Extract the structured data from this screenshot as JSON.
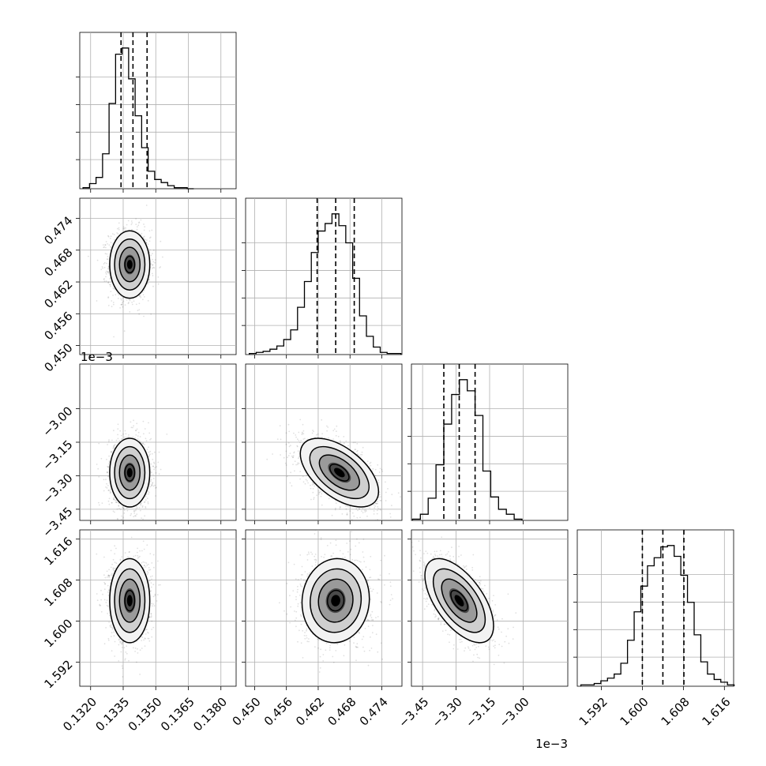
{
  "chart_data": {
    "type": "corner",
    "title": "",
    "grid": true,
    "quantiles_shown": 3,
    "params": [
      {
        "index": 0,
        "range": [
          0.1315,
          0.1387
        ],
        "ticks": [
          0.132,
          0.1335,
          0.135,
          0.1365,
          0.138
        ],
        "tick_labels": [
          "0.1320",
          "0.1335",
          "0.1350",
          "0.1365",
          "0.1380"
        ],
        "offset_label": "",
        "quantiles": [
          0.1334,
          0.13395,
          0.1346
        ],
        "histogram": {
          "bin_edges": [
            0.13165,
            0.13195,
            0.13225,
            0.13255,
            0.13285,
            0.13315,
            0.13345,
            0.13375,
            0.13405,
            0.13435,
            0.13465,
            0.13495,
            0.13525,
            0.13555,
            0.13585,
            0.13615,
            0.13645,
            0.13675
          ],
          "counts": [
            1,
            5,
            11,
            34,
            83,
            131,
            137,
            107,
            71,
            40,
            17,
            9,
            6,
            3,
            1,
            1,
            0
          ]
        }
      },
      {
        "index": 1,
        "range": [
          0.4483,
          0.4778
        ],
        "ticks": [
          0.45,
          0.456,
          0.462,
          0.468,
          0.474
        ],
        "tick_labels": [
          "0.450",
          "0.456",
          "0.462",
          "0.468",
          "0.474"
        ],
        "offset_label": "",
        "quantiles": [
          0.4618,
          0.4653,
          0.4688
        ],
        "histogram": {
          "bin_edges": [
            0.449,
            0.4503,
            0.4516,
            0.4529,
            0.4542,
            0.4555,
            0.4568,
            0.4581,
            0.4594,
            0.4607,
            0.462,
            0.4633,
            0.4646,
            0.4659,
            0.4672,
            0.4685,
            0.4698,
            0.4711,
            0.4724,
            0.4737,
            0.475,
            0.4763,
            0.4776
          ],
          "counts": [
            1,
            2,
            3,
            5,
            8,
            14,
            23,
            44,
            68,
            95,
            115,
            122,
            131,
            120,
            104,
            71,
            36,
            17,
            7,
            2,
            1,
            1
          ]
        }
      },
      {
        "index": 2,
        "range": [
          -3.5,
          -2.8
        ],
        "ticks": [
          -3.45,
          -3.3,
          -3.15,
          -3.0
        ],
        "tick_labels": [
          "−3.45",
          "−3.30",
          "−3.15",
          "−3.00"
        ],
        "offset_label": "1e−3",
        "quantiles": [
          -3.355,
          -3.286,
          -3.215
        ],
        "histogram": {
          "bin_edges": [
            -3.495,
            -3.46,
            -3.425,
            -3.39,
            -3.355,
            -3.32,
            -3.285,
            -3.25,
            -3.215,
            -3.18,
            -3.145,
            -3.11,
            -3.075,
            -3.04,
            -3.005
          ],
          "counts": [
            1,
            5,
            18,
            45,
            78,
            102,
            114,
            105,
            85,
            40,
            19,
            9,
            5,
            1
          ]
        }
      },
      {
        "index": 3,
        "range": [
          1.5873,
          1.6178
        ],
        "ticks": [
          1.592,
          1.6,
          1.608,
          1.616
        ],
        "tick_labels": [
          "1.592",
          "1.600",
          "1.608",
          "1.616"
        ],
        "offset_label": "",
        "quantiles": [
          1.6,
          1.604,
          1.6081
        ],
        "histogram": {
          "bin_edges": [
            1.588,
            1.5893,
            1.5906,
            1.5919,
            1.5932,
            1.5945,
            1.5958,
            1.5971,
            1.5984,
            1.5997,
            1.601,
            1.6023,
            1.6036,
            1.6049,
            1.6062,
            1.6075,
            1.6088,
            1.6101,
            1.6114,
            1.6127,
            1.614,
            1.6153,
            1.6166,
            1.6179
          ],
          "counts": [
            1,
            1,
            2,
            4,
            6,
            9,
            17,
            34,
            55,
            74,
            89,
            95,
            103,
            104,
            96,
            82,
            62,
            38,
            18,
            9,
            5,
            3,
            1
          ]
        }
      }
    ],
    "pairs": [
      {
        "row": 1,
        "col": 0,
        "center": [
          0.1338,
          0.4653
        ],
        "sd": [
          0.00045,
          0.0031
        ],
        "corr": 0.0
      },
      {
        "row": 2,
        "col": 0,
        "center": [
          0.1338,
          -3.286
        ],
        "sd": [
          0.00045,
          0.075
        ],
        "corr": 0.0
      },
      {
        "row": 2,
        "col": 1,
        "center": [
          0.466,
          -3.286
        ],
        "sd": [
          0.0036,
          0.075
        ],
        "corr": -0.55
      },
      {
        "row": 3,
        "col": 0,
        "center": [
          0.1338,
          1.604
        ],
        "sd": [
          0.00045,
          0.004
        ],
        "corr": 0.0
      },
      {
        "row": 3,
        "col": 1,
        "center": [
          0.4653,
          1.604
        ],
        "sd": [
          0.0031,
          0.004
        ],
        "corr": 0.05
      },
      {
        "row": 3,
        "col": 2,
        "center": [
          -3.286,
          1.604
        ],
        "sd": [
          0.075,
          0.004
        ],
        "corr": -0.6
      }
    ]
  }
}
